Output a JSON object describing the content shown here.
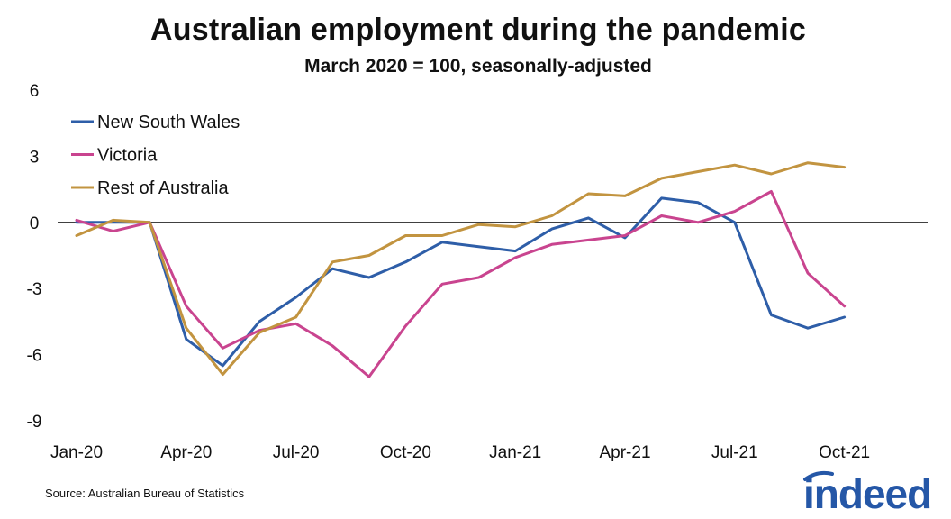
{
  "title": "Australian employment during the pandemic",
  "subtitle": "March 2020 = 100, seasonally-adjusted",
  "source": "Source: Australian Bureau of Statistics",
  "logo_text": "indeed",
  "colors": {
    "nsw": "#2E5EA8",
    "vic": "#C9448F",
    "rest": "#C29440",
    "logo": "#2557A7"
  },
  "chart_data": {
    "type": "line",
    "title": "Australian employment during the pandemic",
    "subtitle": "March 2020 = 100, seasonally-adjusted",
    "xlabel": "",
    "ylabel": "",
    "ylim": [
      -9,
      6
    ],
    "yticks": [
      6,
      3,
      0,
      -3,
      -6,
      -9
    ],
    "xticks": [
      "Jan-20",
      "Apr-20",
      "Jul-20",
      "Oct-20",
      "Jan-21",
      "Apr-21",
      "Jul-21",
      "Oct-21"
    ],
    "x": [
      "Jan-20",
      "Feb-20",
      "Mar-20",
      "Apr-20",
      "May-20",
      "Jun-20",
      "Jul-20",
      "Aug-20",
      "Sep-20",
      "Oct-20",
      "Nov-20",
      "Dec-20",
      "Jan-21",
      "Feb-21",
      "Mar-21",
      "Apr-21",
      "May-21",
      "Jun-21",
      "Jul-21",
      "Aug-21",
      "Sep-21",
      "Oct-21"
    ],
    "legend_position": "top-left",
    "series": [
      {
        "name": "New South Wales",
        "color": "#2E5EA8",
        "values": [
          0.0,
          0.0,
          0.0,
          -5.3,
          -6.5,
          -4.5,
          -3.4,
          -2.1,
          -2.5,
          -1.8,
          -0.9,
          -1.1,
          -1.3,
          -0.3,
          0.2,
          -0.7,
          1.1,
          0.9,
          0.0,
          -4.2,
          -4.8,
          -4.3
        ]
      },
      {
        "name": "Victoria",
        "color": "#C9448F",
        "values": [
          0.1,
          -0.4,
          0.0,
          -3.8,
          -5.7,
          -4.9,
          -4.6,
          -5.6,
          -7.0,
          -4.7,
          -2.8,
          -2.5,
          -1.6,
          -1.0,
          -0.8,
          -0.6,
          0.3,
          0.0,
          0.5,
          1.4,
          -2.3,
          -3.8
        ]
      },
      {
        "name": "Rest of Australia",
        "color": "#C29440",
        "values": [
          -0.6,
          0.1,
          0.0,
          -4.8,
          -6.9,
          -5.0,
          -4.3,
          -1.8,
          -1.5,
          -0.6,
          -0.6,
          -0.1,
          -0.2,
          0.3,
          1.3,
          1.2,
          2.0,
          2.3,
          2.6,
          2.2,
          2.7,
          2.5
        ]
      }
    ]
  }
}
